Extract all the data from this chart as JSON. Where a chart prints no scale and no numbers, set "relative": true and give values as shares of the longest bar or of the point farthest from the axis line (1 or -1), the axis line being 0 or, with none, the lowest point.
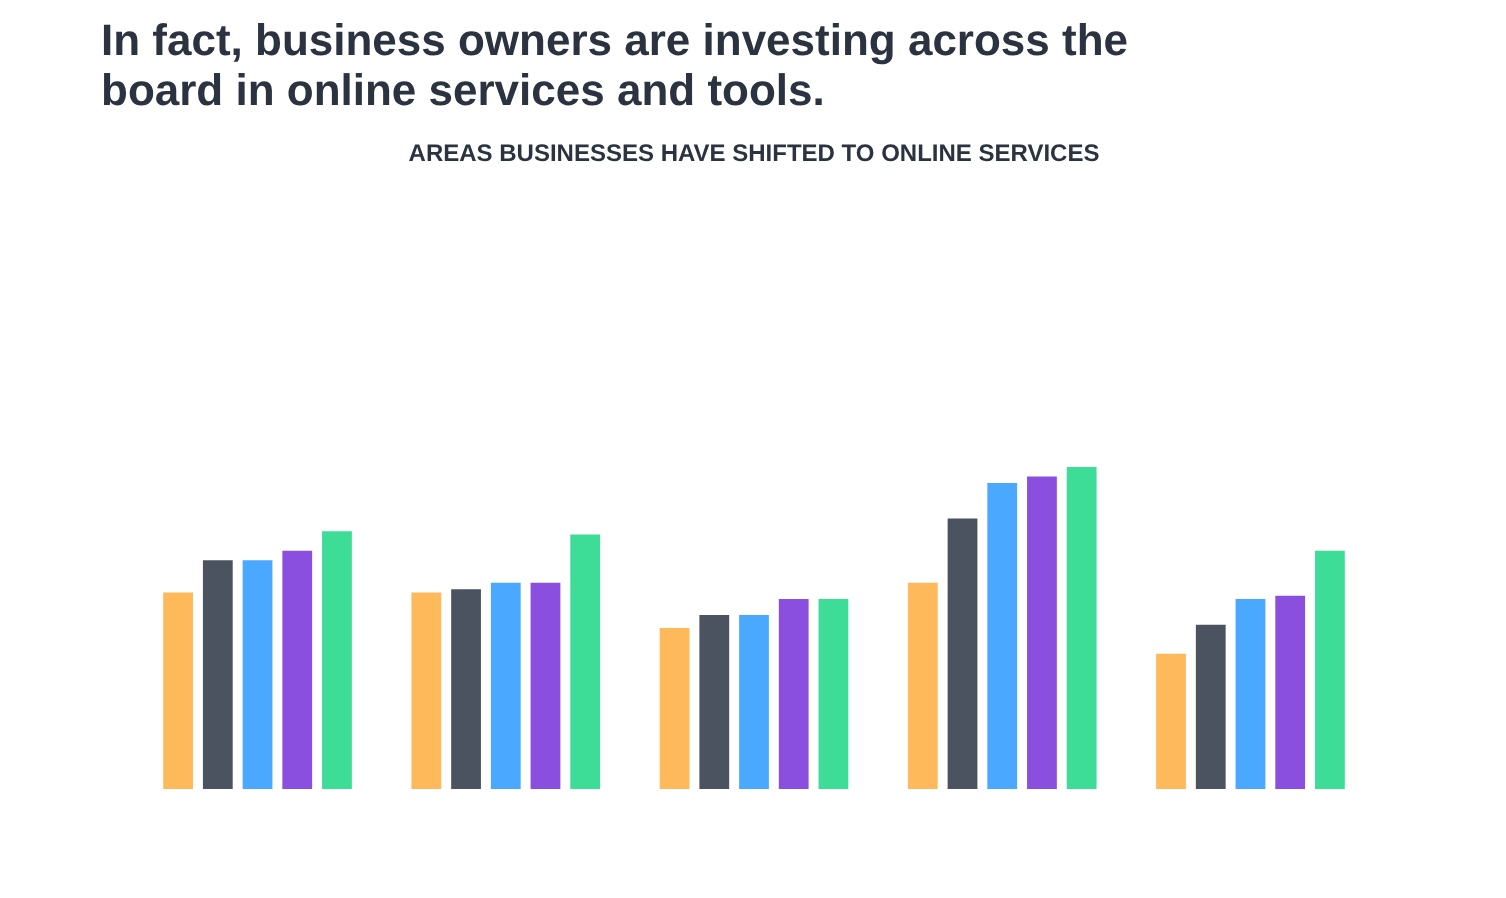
{
  "chart_data": {
    "type": "bar",
    "title": "In fact, business owners are investing across the\nboard in online services and tools.",
    "subtitle": "AREAS BUSINESSES HAVE SHIFTED TO ONLINE SERVICES",
    "relative": true,
    "categories": [
      null,
      null,
      null,
      null,
      null
    ],
    "series": [
      {
        "color": "#fdb95a",
        "values": [
          0.61,
          0.61,
          0.5,
          0.64,
          0.42
        ]
      },
      {
        "color": "#4b5360",
        "values": [
          0.71,
          0.62,
          0.54,
          0.84,
          0.51
        ]
      },
      {
        "color": "#4aa8ff",
        "values": [
          0.71,
          0.64,
          0.54,
          0.95,
          0.59
        ]
      },
      {
        "color": "#8b4fe0",
        "values": [
          0.74,
          0.64,
          0.59,
          0.97,
          0.6
        ]
      },
      {
        "color": "#3ddc97",
        "values": [
          0.8,
          0.79,
          0.59,
          1.0,
          0.74
        ]
      }
    ]
  }
}
